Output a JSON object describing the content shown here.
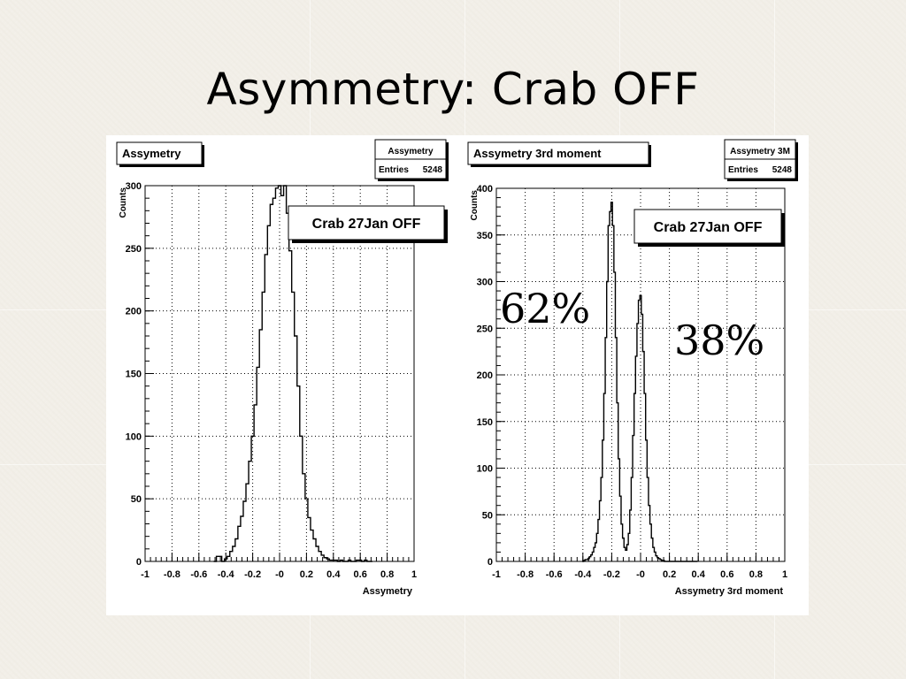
{
  "slide": {
    "title": "Asymmetry: Crab OFF"
  },
  "chart_data": [
    {
      "type": "histogram",
      "title": "Assymetry",
      "stats": {
        "name": "Assymetry",
        "entries_label": "Entries",
        "entries": 5248
      },
      "label_box": "Crab 27Jan OFF",
      "xlabel": "Assymetry",
      "ylabel": "Counts",
      "xlim": [
        -1,
        1
      ],
      "ylim": [
        0,
        300
      ],
      "x_ticks": [
        "-1",
        "-0.8",
        "-0.6",
        "-0.4",
        "-0.2",
        "-0",
        "0.2",
        "0.4",
        "0.6",
        "0.8",
        "1"
      ],
      "y_ticks": [
        "0",
        "50",
        "100",
        "150",
        "200",
        "250",
        "300"
      ],
      "grid": true,
      "bin_width": 0.02,
      "x": [
        -0.48,
        -0.46,
        -0.44,
        -0.42,
        -0.4,
        -0.38,
        -0.36,
        -0.34,
        -0.32,
        -0.3,
        -0.28,
        -0.26,
        -0.24,
        -0.22,
        -0.2,
        -0.18,
        -0.16,
        -0.14,
        -0.12,
        -0.1,
        -0.08,
        -0.06,
        -0.04,
        -0.02,
        0.0,
        0.02,
        0.04,
        0.06,
        0.08,
        0.1,
        0.12,
        0.14,
        0.16,
        0.18,
        0.2,
        0.22,
        0.24,
        0.26,
        0.28,
        0.3,
        0.32,
        0.34,
        0.36,
        0.38,
        0.4,
        0.42,
        0.44,
        0.46,
        0.48,
        0.5,
        0.52,
        0.54,
        0.56,
        0.58,
        0.6,
        0.62,
        0.64,
        0.66,
        0.68
      ],
      "values": [
        0,
        4,
        4,
        0,
        2,
        4,
        8,
        12,
        18,
        28,
        36,
        48,
        62,
        80,
        100,
        125,
        155,
        185,
        215,
        245,
        268,
        285,
        290,
        298,
        300,
        292,
        300,
        278,
        248,
        215,
        180,
        140,
        100,
        70,
        50,
        35,
        25,
        18,
        12,
        8,
        5,
        3,
        2,
        1,
        1,
        1,
        0,
        1,
        0,
        0,
        1,
        0,
        0,
        1,
        1,
        0,
        1,
        0,
        0
      ]
    },
    {
      "type": "histogram",
      "title": "Assymetry 3rd moment",
      "stats": {
        "name": "Assymetry 3M",
        "entries_label": "Entries",
        "entries": 5248
      },
      "label_box": "Crab 27Jan OFF",
      "xlabel": "Assymetry 3rd moment",
      "ylabel": "Counts",
      "xlim": [
        -1,
        1
      ],
      "ylim": [
        0,
        400
      ],
      "x_ticks": [
        "-1",
        "-0.8",
        "-0.6",
        "-0.4",
        "-0.2",
        "-0",
        "0.2",
        "0.4",
        "0.6",
        "0.8",
        "1"
      ],
      "y_ticks": [
        "0",
        "50",
        "100",
        "150",
        "200",
        "250",
        "300",
        "350",
        "400"
      ],
      "grid": true,
      "bin_width": 0.01,
      "x": [
        -0.4,
        -0.39,
        -0.38,
        -0.37,
        -0.36,
        -0.35,
        -0.34,
        -0.33,
        -0.32,
        -0.31,
        -0.3,
        -0.29,
        -0.28,
        -0.27,
        -0.26,
        -0.25,
        -0.24,
        -0.23,
        -0.22,
        -0.21,
        -0.2,
        -0.19,
        -0.18,
        -0.17,
        -0.16,
        -0.15,
        -0.14,
        -0.13,
        -0.12,
        -0.11,
        -0.1,
        -0.09,
        -0.08,
        -0.07,
        -0.06,
        -0.05,
        -0.04,
        -0.03,
        -0.02,
        -0.01,
        0.0,
        0.01,
        0.02,
        0.03,
        0.04,
        0.05,
        0.06,
        0.07,
        0.08,
        0.09,
        0.1,
        0.11,
        0.12,
        0.13,
        0.14,
        0.15,
        0.16,
        0.17,
        0.18,
        0.19,
        0.2,
        0.21,
        0.22,
        0.23,
        0.24,
        0.25,
        0.26,
        0.27,
        0.28,
        0.29,
        0.3,
        0.31,
        0.32,
        0.33,
        0.34,
        0.35,
        0.36,
        0.37,
        0.38,
        0.39
      ],
      "values": [
        0,
        1,
        2,
        2,
        3,
        5,
        7,
        10,
        15,
        20,
        30,
        45,
        65,
        90,
        130,
        180,
        240,
        300,
        360,
        375,
        385,
        360,
        310,
        240,
        170,
        110,
        70,
        40,
        25,
        15,
        12,
        18,
        30,
        55,
        90,
        135,
        180,
        220,
        255,
        280,
        285,
        265,
        225,
        180,
        130,
        90,
        60,
        40,
        25,
        15,
        10,
        6,
        4,
        3,
        2,
        1,
        1,
        0,
        0,
        0,
        0,
        0,
        0,
        0,
        0,
        0,
        0,
        0,
        0,
        0,
        0,
        0,
        0,
        0,
        0,
        0,
        0,
        0,
        0,
        0
      ],
      "annotations": [
        "62%",
        "38%"
      ]
    }
  ]
}
